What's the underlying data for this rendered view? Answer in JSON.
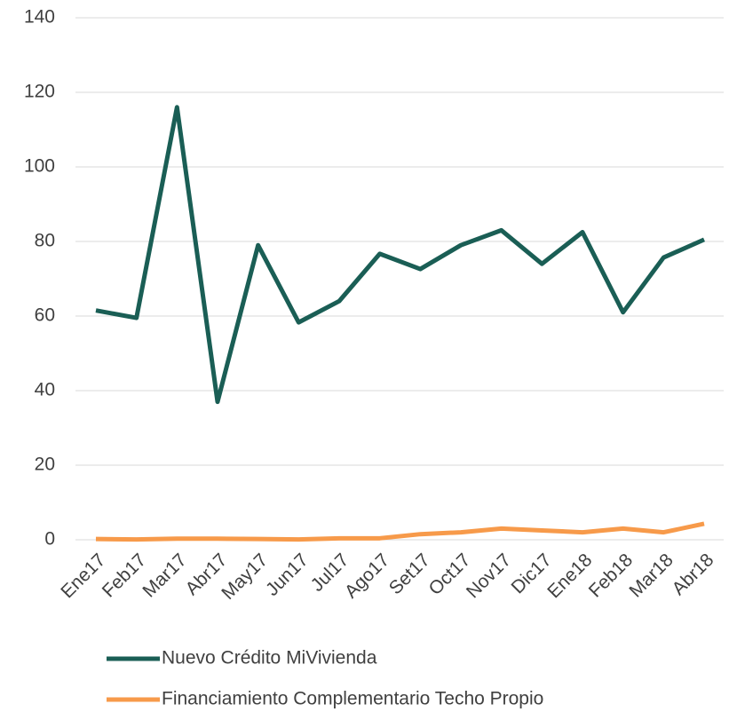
{
  "chart_data": {
    "type": "line",
    "categories": [
      "Ene17",
      "Feb17",
      "Mar17",
      "Abr17",
      "May17",
      "Jun17",
      "Jul17",
      "Ago17",
      "Set17",
      "Oct17",
      "Nov17",
      "Dic17",
      "Ene18",
      "Feb18",
      "Mar18",
      "Abr18"
    ],
    "series": [
      {
        "name": "Nuevo Crédito MiVivienda",
        "color": "#1a5e55",
        "values": [
          61.5,
          59.5,
          116,
          37,
          79,
          58.3,
          64,
          76.7,
          72.6,
          79,
          83,
          74,
          82.5,
          61,
          75.7,
          80.5
        ]
      },
      {
        "name": "Financiamiento Complementario Techo Propio",
        "color": "#f79a4a",
        "values": [
          0.2,
          0.1,
          0.3,
          0.3,
          0.2,
          0.1,
          0.4,
          0.4,
          1.5,
          2,
          3,
          2.5,
          2,
          3,
          2,
          4.3
        ]
      }
    ],
    "ylim": [
      0,
      140
    ],
    "yticks": [
      0,
      20,
      40,
      60,
      80,
      100,
      120,
      140
    ],
    "grid": true,
    "legend": "bottom"
  }
}
